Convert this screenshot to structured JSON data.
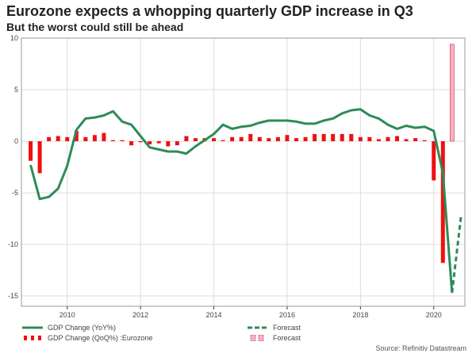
{
  "title": "Eurozone expects a whopping quarterly GDP increase in Q3",
  "subtitle": "But the worst could still be ahead",
  "source": "Source: Refinitiv Datastream",
  "colors": {
    "line": "#2e8b57",
    "bar": "#ee1111",
    "forecast_bar": "#f4b6bc",
    "grid": "#dddddd",
    "axis": "#333333"
  },
  "legend": {
    "yoy_label": "GDP Change (YoY%)",
    "qoq_label": "GDP Change (QoQ%) :Eurozone",
    "forecast_line_label": "Forecast",
    "forecast_bar_label": "Forecast"
  },
  "chart_data": {
    "type": "bar+line",
    "title": "Eurozone expects a whopping quarterly GDP increase in Q3",
    "subtitle": "But the worst could still be ahead",
    "xlabel": "",
    "ylabel": "",
    "xlim": [
      2008.75,
      2020.85
    ],
    "ylim": [
      -16,
      10
    ],
    "xticks": [
      "2010",
      "2012",
      "2014",
      "2016",
      "2018",
      "2020"
    ],
    "xtick_values": [
      2010,
      2012,
      2014,
      2016,
      2018,
      2020
    ],
    "yticks": [
      "-15",
      "-10",
      "-5",
      "0",
      "5",
      "10"
    ],
    "ytick_values": [
      -15,
      -10,
      -5,
      0,
      5,
      10
    ],
    "grid": true,
    "legend_position": "bottom-left",
    "series": [
      {
        "name": "GDP Change (YoY%)",
        "kind": "line",
        "x": [
          2009.0,
          2009.25,
          2009.5,
          2009.75,
          2010.0,
          2010.25,
          2010.5,
          2010.75,
          2011.0,
          2011.25,
          2011.5,
          2011.75,
          2012.0,
          2012.25,
          2012.5,
          2012.75,
          2013.0,
          2013.25,
          2013.5,
          2013.75,
          2014.0,
          2014.25,
          2014.5,
          2014.75,
          2015.0,
          2015.25,
          2015.5,
          2015.75,
          2016.0,
          2016.25,
          2016.5,
          2016.75,
          2017.0,
          2017.25,
          2017.5,
          2017.75,
          2018.0,
          2018.25,
          2018.5,
          2018.75,
          2019.0,
          2019.25,
          2019.5,
          2019.75,
          2020.0,
          2020.25,
          2020.5
        ],
        "values": [
          -2.3,
          -5.6,
          -5.4,
          -4.6,
          -2.4,
          1.1,
          2.2,
          2.3,
          2.5,
          2.9,
          1.9,
          1.6,
          0.5,
          -0.6,
          -0.8,
          -1.0,
          -1.0,
          -1.2,
          -0.5,
          0.1,
          0.7,
          1.6,
          1.2,
          1.4,
          1.5,
          1.8,
          2.0,
          2.0,
          2.0,
          1.9,
          1.7,
          1.7,
          2.0,
          2.2,
          2.7,
          3.0,
          3.1,
          2.5,
          2.2,
          1.6,
          1.2,
          1.5,
          1.3,
          1.4,
          1.0,
          -3.1,
          -14.7
        ]
      },
      {
        "name": "Forecast",
        "kind": "line-dashed",
        "x": [
          2020.5,
          2020.75
        ],
        "values": [
          -14.7,
          -7.1
        ]
      },
      {
        "name": "GDP Change (QoQ%) :Eurozone",
        "kind": "bar",
        "x": [
          2009.0,
          2009.25,
          2009.5,
          2009.75,
          2010.0,
          2010.25,
          2010.5,
          2010.75,
          2011.0,
          2011.25,
          2011.5,
          2011.75,
          2012.0,
          2012.25,
          2012.5,
          2012.75,
          2013.0,
          2013.25,
          2013.5,
          2013.75,
          2014.0,
          2014.25,
          2014.5,
          2014.75,
          2015.0,
          2015.25,
          2015.5,
          2015.75,
          2016.0,
          2016.25,
          2016.5,
          2016.75,
          2017.0,
          2017.25,
          2017.5,
          2017.75,
          2018.0,
          2018.25,
          2018.5,
          2018.75,
          2019.0,
          2019.25,
          2019.5,
          2019.75,
          2020.0,
          2020.25
        ],
        "values": [
          -1.9,
          -3.1,
          0.4,
          0.5,
          0.4,
          1.0,
          0.4,
          0.6,
          0.8,
          0.1,
          0.1,
          -0.4,
          -0.1,
          -0.3,
          -0.2,
          -0.5,
          -0.4,
          0.5,
          0.3,
          0.3,
          0.3,
          0.1,
          0.4,
          0.4,
          0.7,
          0.4,
          0.3,
          0.4,
          0.6,
          0.3,
          0.4,
          0.7,
          0.7,
          0.7,
          0.7,
          0.7,
          0.4,
          0.4,
          0.2,
          0.4,
          0.5,
          0.2,
          0.3,
          0.1,
          -3.8,
          -11.8
        ]
      },
      {
        "name": "Forecast",
        "kind": "bar-forecast",
        "x": [
          2020.5
        ],
        "values": [
          9.4
        ]
      }
    ]
  }
}
